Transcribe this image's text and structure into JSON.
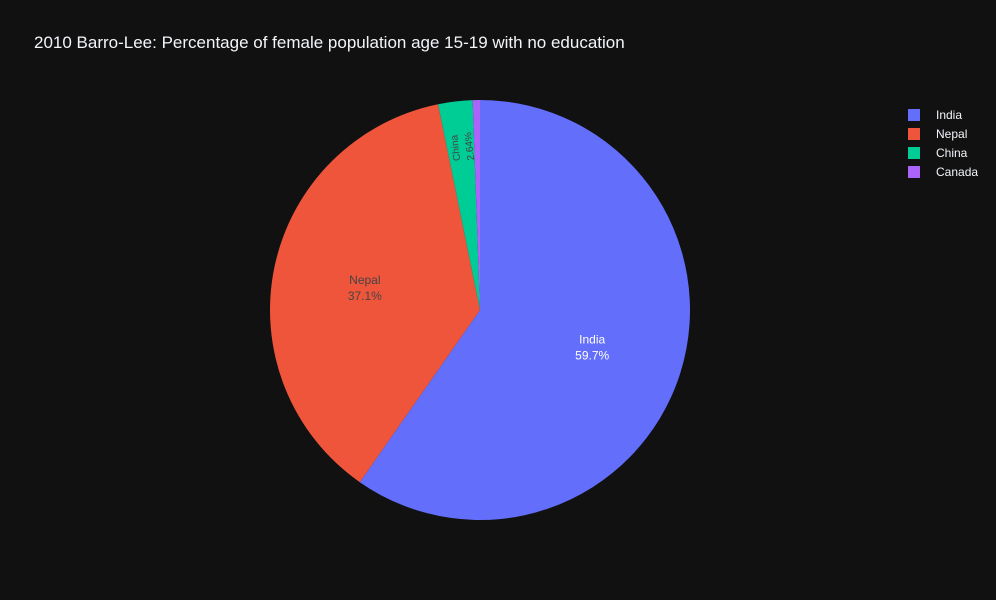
{
  "chart_data": {
    "type": "pie",
    "title": "2010 Barro-Lee: Percentage of female population age 15-19 with no education",
    "slices": [
      {
        "label": "India",
        "value": 59.7,
        "percent_text": "59.7%",
        "color": "#636efa",
        "text_color": "#ffffff",
        "show_text": true
      },
      {
        "label": "Nepal",
        "value": 37.1,
        "percent_text": "37.1%",
        "color": "#ef553b",
        "text_color": "#444444",
        "show_text": true
      },
      {
        "label": "China",
        "value": 2.64,
        "percent_text": "2.64%",
        "color": "#00cc96",
        "text_color": "#444444",
        "show_text": true
      },
      {
        "label": "Canada",
        "value": 0.56,
        "percent_text": "",
        "color": "#ab63fa",
        "text_color": "#444444",
        "show_text": false
      }
    ],
    "legend": {
      "position": "top-right",
      "entries": [
        "India",
        "Nepal",
        "China",
        "Canada"
      ]
    },
    "start_angle_deg": 90,
    "direction": "clockwise",
    "background": "#111111"
  }
}
